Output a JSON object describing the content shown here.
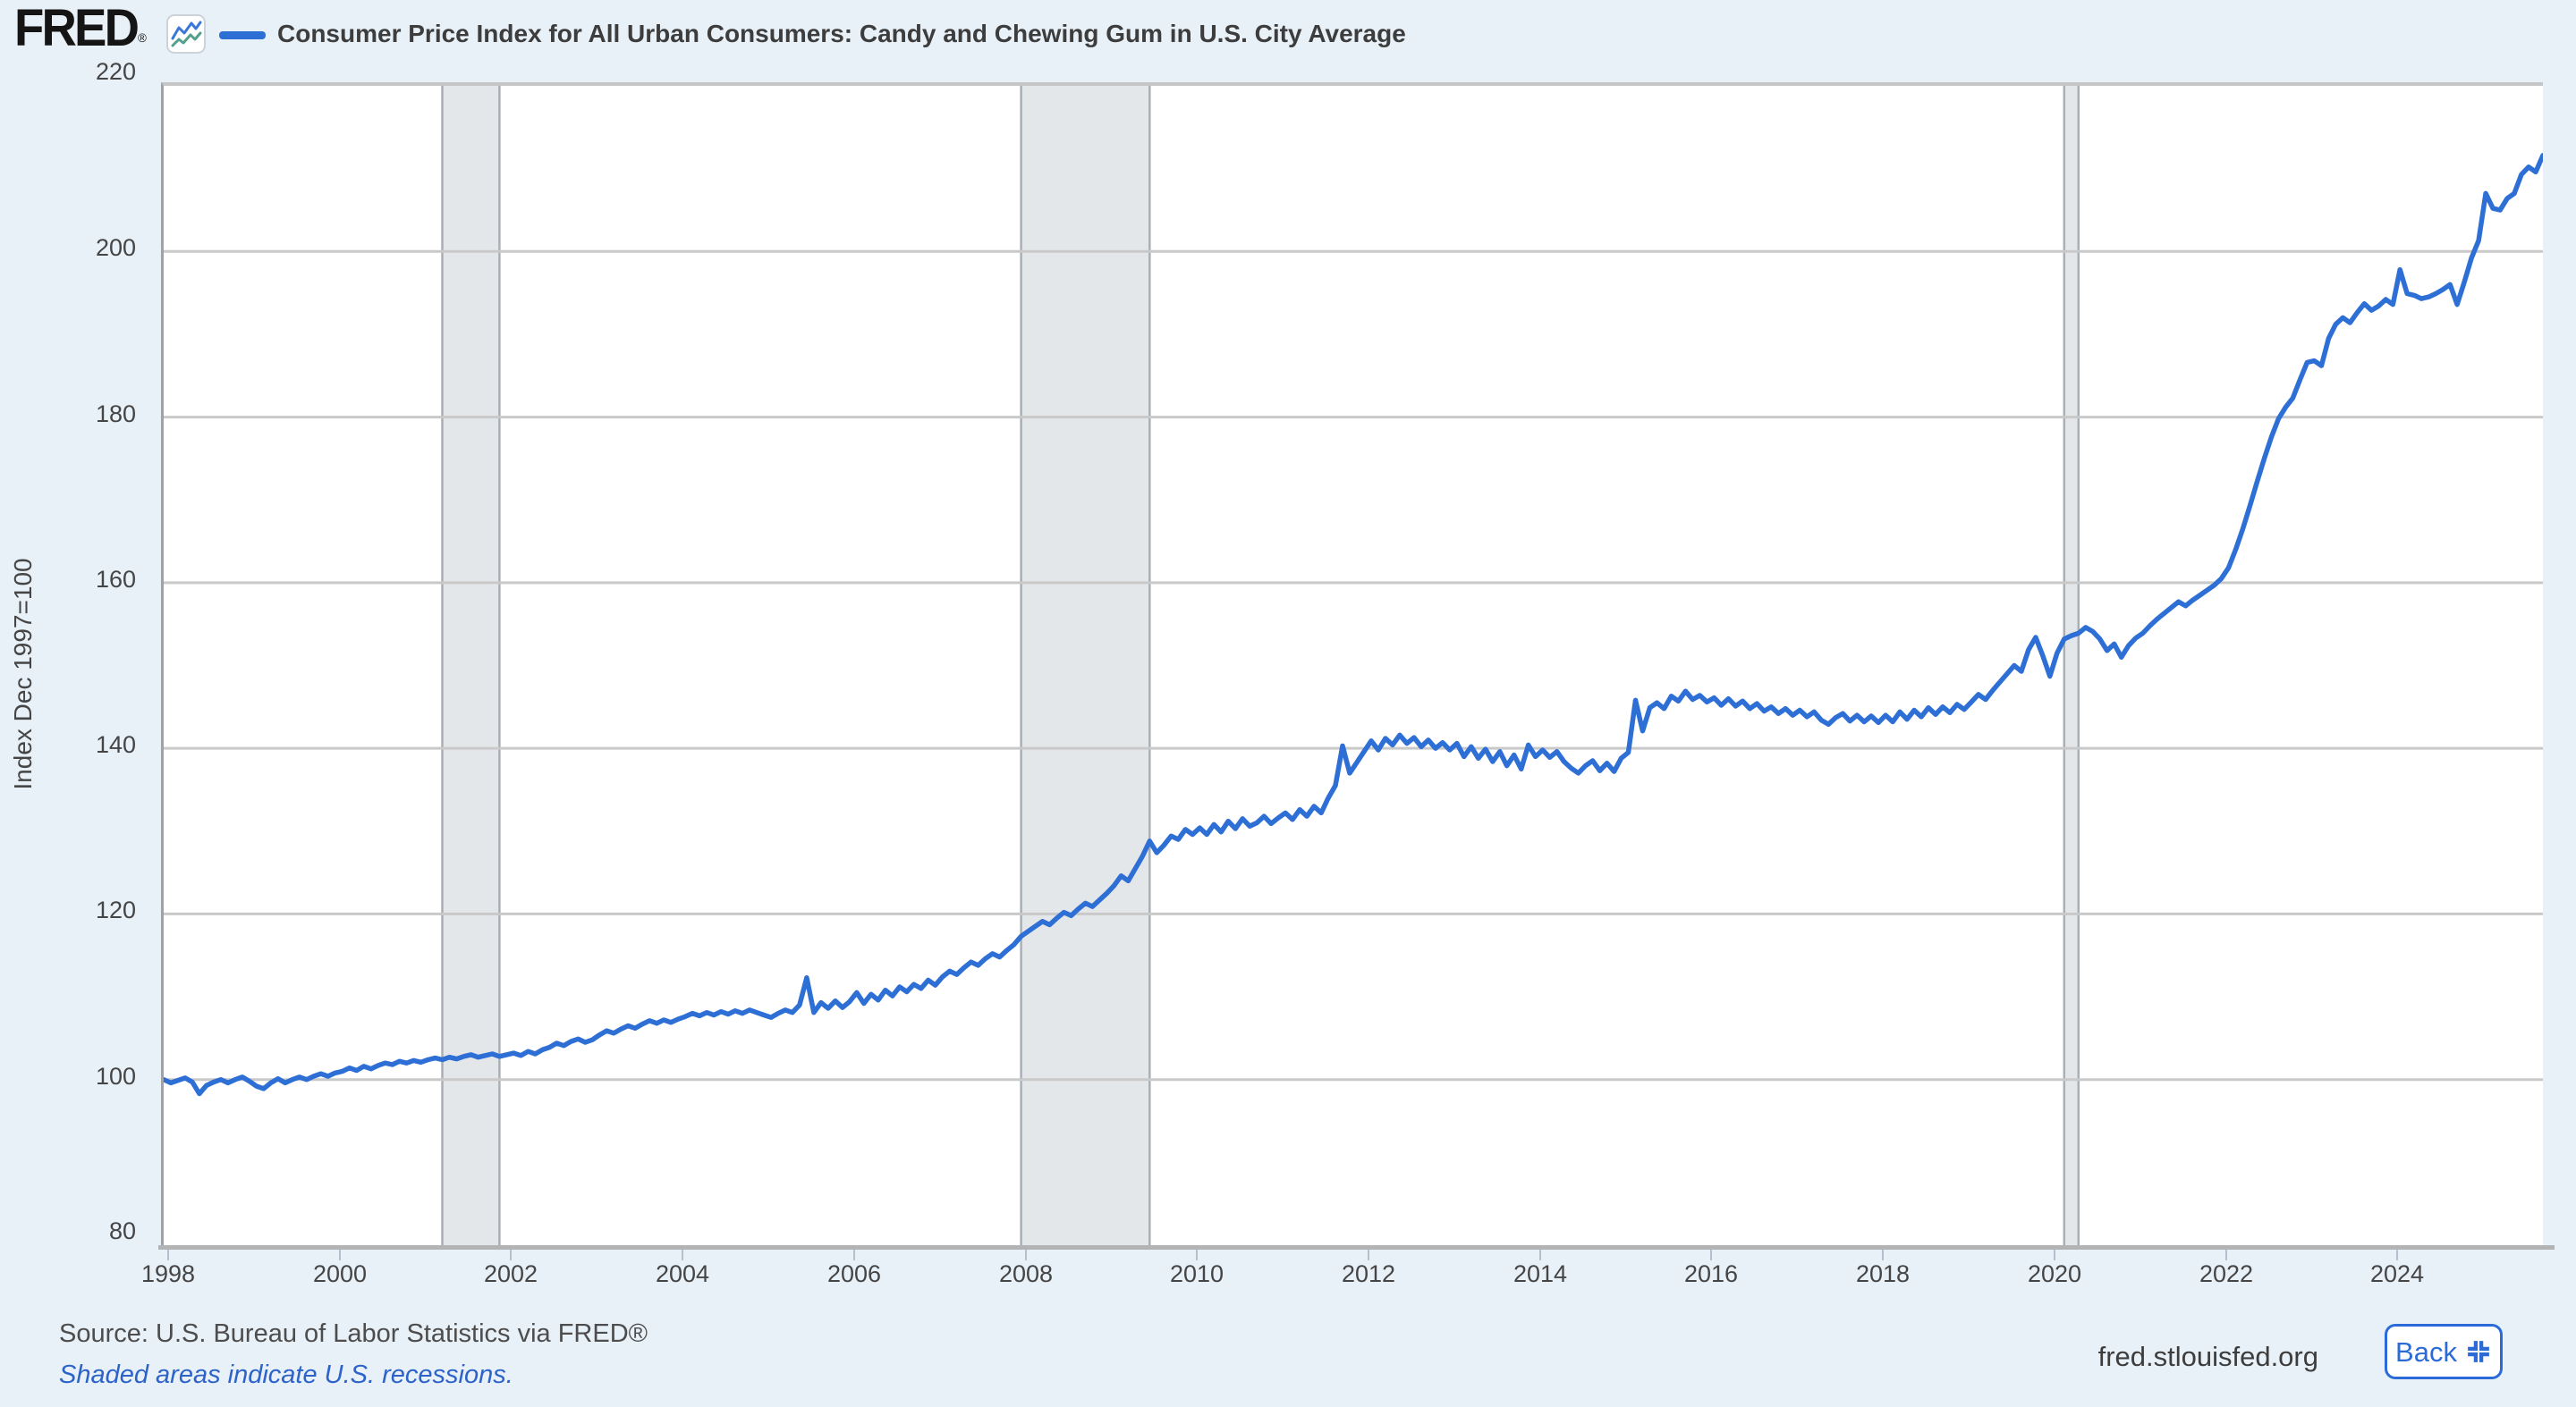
{
  "header": {
    "logo": "FRED",
    "logo_registered": "®",
    "title": "Consumer Price Index for All Urban Consumers: Candy and Chewing Gum in U.S. City Average"
  },
  "y_axis": {
    "title": "Index Dec 1997=100",
    "ticks": [
      220,
      200,
      180,
      160,
      140,
      120,
      100,
      80
    ]
  },
  "x_axis": {
    "ticks": [
      1998,
      2000,
      2002,
      2004,
      2006,
      2008,
      2010,
      2012,
      2014,
      2016,
      2018,
      2020,
      2022,
      2024
    ]
  },
  "footer": {
    "source": "Source: U.S. Bureau of Labor Statistics via FRED®",
    "note": "Shaded areas indicate U.S. recessions.",
    "website": "fred.stlouisfed.org",
    "back_label": "Back"
  },
  "chart_data": {
    "type": "line",
    "title": "Consumer Price Index for All Urban Consumers: Candy and Chewing Gum in U.S. City Average",
    "ylabel": "Index Dec 1997=100",
    "ylim": [
      80,
      220
    ],
    "grid": "horizontal",
    "gridline_values": [
      100,
      120,
      140,
      160,
      180,
      200
    ],
    "frequency": "monthly",
    "start": "1997-12",
    "end": "2025-09",
    "x_tick_years": [
      1998,
      2000,
      2002,
      2004,
      2006,
      2008,
      2010,
      2012,
      2014,
      2016,
      2018,
      2020,
      2022,
      2024
    ],
    "recessions": [
      {
        "start": "2001-03",
        "end": "2001-11"
      },
      {
        "start": "2007-12",
        "end": "2009-06"
      },
      {
        "start": "2020-02",
        "end": "2020-04"
      }
    ],
    "colors": {
      "line": "#2e6fd6",
      "hgrid": "#c9c9c9",
      "recession": "#e4e7ea",
      "recession_edge": "#aaafb5"
    },
    "values": [
      100.0,
      99.6,
      99.9,
      100.2,
      99.7,
      98.3,
      99.3,
      99.7,
      100.0,
      99.6,
      100.0,
      100.3,
      99.8,
      99.2,
      98.9,
      99.6,
      100.1,
      99.6,
      100.0,
      100.3,
      100.0,
      100.4,
      100.7,
      100.4,
      100.8,
      101.0,
      101.4,
      101.1,
      101.6,
      101.3,
      101.7,
      102.0,
      101.8,
      102.2,
      102.0,
      102.3,
      102.1,
      102.4,
      102.6,
      102.4,
      102.7,
      102.5,
      102.8,
      103.0,
      102.7,
      102.9,
      103.1,
      102.8,
      103.0,
      103.2,
      102.9,
      103.4,
      103.1,
      103.6,
      103.9,
      104.4,
      104.1,
      104.6,
      104.9,
      104.5,
      104.8,
      105.4,
      105.9,
      105.6,
      106.1,
      106.5,
      106.2,
      106.7,
      107.1,
      106.8,
      107.2,
      106.9,
      107.3,
      107.6,
      108.0,
      107.7,
      108.1,
      107.8,
      108.2,
      107.9,
      108.3,
      108.0,
      108.4,
      108.1,
      107.8,
      107.5,
      108.0,
      108.4,
      108.1,
      109.0,
      112.3,
      108.1,
      109.3,
      108.6,
      109.5,
      108.7,
      109.4,
      110.5,
      109.2,
      110.3,
      109.6,
      110.8,
      110.1,
      111.2,
      110.6,
      111.5,
      111.0,
      112.0,
      111.4,
      112.4,
      113.1,
      112.7,
      113.5,
      114.2,
      113.8,
      114.6,
      115.2,
      114.8,
      115.6,
      116.3,
      117.3,
      117.9,
      118.5,
      119.1,
      118.7,
      119.5,
      120.2,
      119.8,
      120.6,
      121.3,
      120.9,
      121.7,
      122.5,
      123.4,
      124.6,
      124.0,
      125.5,
      127.0,
      128.8,
      127.4,
      128.3,
      129.4,
      129.0,
      130.2,
      129.6,
      130.4,
      129.6,
      130.8,
      129.9,
      131.2,
      130.3,
      131.5,
      130.6,
      131.0,
      131.8,
      130.9,
      131.6,
      132.2,
      131.4,
      132.6,
      131.8,
      133.0,
      132.2,
      134.0,
      135.5,
      140.3,
      137.0,
      138.3,
      139.6,
      140.9,
      139.8,
      141.2,
      140.4,
      141.6,
      140.6,
      141.3,
      140.2,
      141.0,
      140.0,
      140.7,
      139.8,
      140.6,
      139.0,
      140.2,
      138.8,
      139.9,
      138.4,
      139.6,
      137.9,
      139.2,
      137.5,
      140.4,
      139.0,
      139.8,
      138.9,
      139.6,
      138.4,
      137.6,
      137.0,
      137.9,
      138.5,
      137.3,
      138.2,
      137.2,
      138.8,
      139.5,
      145.8,
      142.1,
      144.9,
      145.5,
      144.8,
      146.3,
      145.7,
      146.9,
      145.9,
      146.4,
      145.6,
      146.1,
      145.2,
      146.0,
      145.1,
      145.7,
      144.8,
      145.4,
      144.5,
      145.0,
      144.2,
      144.8,
      144.0,
      144.6,
      143.8,
      144.4,
      143.4,
      142.9,
      143.7,
      144.2,
      143.3,
      144.0,
      143.2,
      143.9,
      143.1,
      144.0,
      143.2,
      144.4,
      143.5,
      144.6,
      143.8,
      144.9,
      144.1,
      145.0,
      144.3,
      145.3,
      144.7,
      145.6,
      146.5,
      145.9,
      147.0,
      148.0,
      149.0,
      150.0,
      149.3,
      151.9,
      153.4,
      151.2,
      148.7,
      151.5,
      153.2,
      153.6,
      153.9,
      154.6,
      154.1,
      153.2,
      151.8,
      152.6,
      151.0,
      152.4,
      153.3,
      153.9,
      154.8,
      155.6,
      156.3,
      157.0,
      157.7,
      157.2,
      157.9,
      158.5,
      159.1,
      159.7,
      160.5,
      161.8,
      164.0,
      166.5,
      169.3,
      172.2,
      175.0,
      177.6,
      179.8,
      181.2,
      182.3,
      184.5,
      186.6,
      186.8,
      186.2,
      189.5,
      191.2,
      192.0,
      191.4,
      192.6,
      193.7,
      192.9,
      193.4,
      194.2,
      193.6,
      197.8,
      194.9,
      194.7,
      194.3,
      194.5,
      194.9,
      195.4,
      196.0,
      193.6,
      196.3,
      199.2,
      201.3,
      207.0,
      205.2,
      205.0,
      206.4,
      207.0,
      209.3,
      210.2,
      209.6,
      211.6
    ]
  }
}
